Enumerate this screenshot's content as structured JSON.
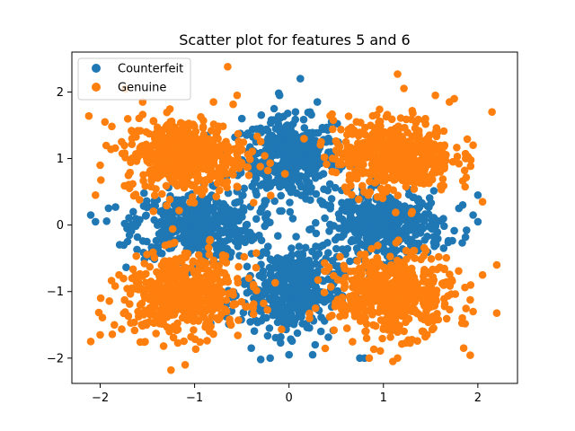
{
  "chart_data": {
    "type": "scatter",
    "title": "Scatter plot for features 5 and 6",
    "xlabel": "",
    "ylabel": "",
    "xlim": [
      -2.3,
      2.42
    ],
    "ylim": [
      -2.38,
      2.6
    ],
    "xticks": [
      -2,
      -1,
      0,
      1,
      2
    ],
    "xtick_labels": [
      "−2",
      "−1",
      "0",
      "1",
      "2"
    ],
    "yticks": [
      -2,
      -1,
      0,
      1,
      2
    ],
    "ytick_labels": [
      "−2",
      "−1",
      "0",
      "1",
      "2"
    ],
    "grid": false,
    "legend": "upper-left",
    "series": [
      {
        "name": "Counterfeit",
        "color": "#1f77b4",
        "clusters": [
          {
            "center": [
              0.0,
              1.0
            ],
            "spread": [
              0.25,
              0.3
            ],
            "n": 420
          },
          {
            "center": [
              -1.0,
              0.0
            ],
            "spread": [
              0.32,
              0.25
            ],
            "n": 420
          },
          {
            "center": [
              1.0,
              0.0
            ],
            "spread": [
              0.32,
              0.25
            ],
            "n": 420
          },
          {
            "center": [
              0.0,
              -1.0
            ],
            "spread": [
              0.25,
              0.32
            ],
            "n": 420
          }
        ],
        "points": [
          [
            -2.1,
            0.15
          ],
          [
            -2.05,
            0.05
          ],
          [
            2.0,
            0.45
          ],
          [
            0.12,
            2.2
          ],
          [
            -0.1,
            1.95
          ],
          [
            0.3,
            1.85
          ],
          [
            -0.2,
            -2.0
          ],
          [
            0.0,
            -1.95
          ],
          [
            0.8,
            -2.0
          ],
          [
            0.75,
            -2.0
          ],
          [
            0.25,
            -1.95
          ],
          [
            -0.4,
            -1.85
          ],
          [
            -0.3,
            -2.02
          ],
          [
            1.95,
            0.15
          ],
          [
            2.0,
            0.05
          ],
          [
            -1.65,
            0.2
          ],
          [
            -1.75,
            -0.3
          ],
          [
            1.8,
            0.25
          ],
          [
            -0.5,
            1.6
          ],
          [
            0.45,
            1.55
          ]
        ]
      },
      {
        "name": "Genuine",
        "color": "#ff7f0e",
        "clusters": [
          {
            "center": [
              -1.1,
              1.05
            ],
            "spread": [
              0.32,
              0.28
            ],
            "n": 520
          },
          {
            "center": [
              1.1,
              1.05
            ],
            "spread": [
              0.32,
              0.28
            ],
            "n": 520
          },
          {
            "center": [
              -1.1,
              -1.05
            ],
            "spread": [
              0.32,
              0.3
            ],
            "n": 520
          },
          {
            "center": [
              1.1,
              -1.05
            ],
            "spread": [
              0.32,
              0.3
            ],
            "n": 520
          }
        ],
        "points": [
          [
            -0.65,
            2.38
          ],
          [
            1.15,
            2.27
          ],
          [
            -1.1,
            -2.1
          ],
          [
            -1.25,
            -2.18
          ],
          [
            2.2,
            -0.6
          ],
          [
            -2.1,
            -1.75
          ],
          [
            -2.05,
            0.45
          ],
          [
            2.15,
            1.7
          ],
          [
            1.75,
            1.9
          ],
          [
            -2.0,
            0.9
          ],
          [
            -1.95,
            1.55
          ],
          [
            2.05,
            -0.75
          ],
          [
            1.85,
            -1.85
          ],
          [
            -1.8,
            -0.75
          ],
          [
            -1.85,
            -1.5
          ],
          [
            -2.0,
            -1.65
          ],
          [
            1.95,
            1.2
          ],
          [
            1.55,
            1.95
          ],
          [
            -1.55,
            1.85
          ],
          [
            0.85,
            -2.0
          ],
          [
            1.1,
            -2.05
          ],
          [
            1.15,
            -2.0
          ],
          [
            -0.8,
            1.85
          ],
          [
            -0.55,
            1.95
          ],
          [
            1.95,
            -1.3
          ],
          [
            -1.6,
            -1.3
          ],
          [
            1.7,
            1.85
          ],
          [
            2.05,
            0.35
          ],
          [
            -1.25,
            -0.55
          ],
          [
            -0.7,
            -0.45
          ]
        ]
      }
    ]
  }
}
